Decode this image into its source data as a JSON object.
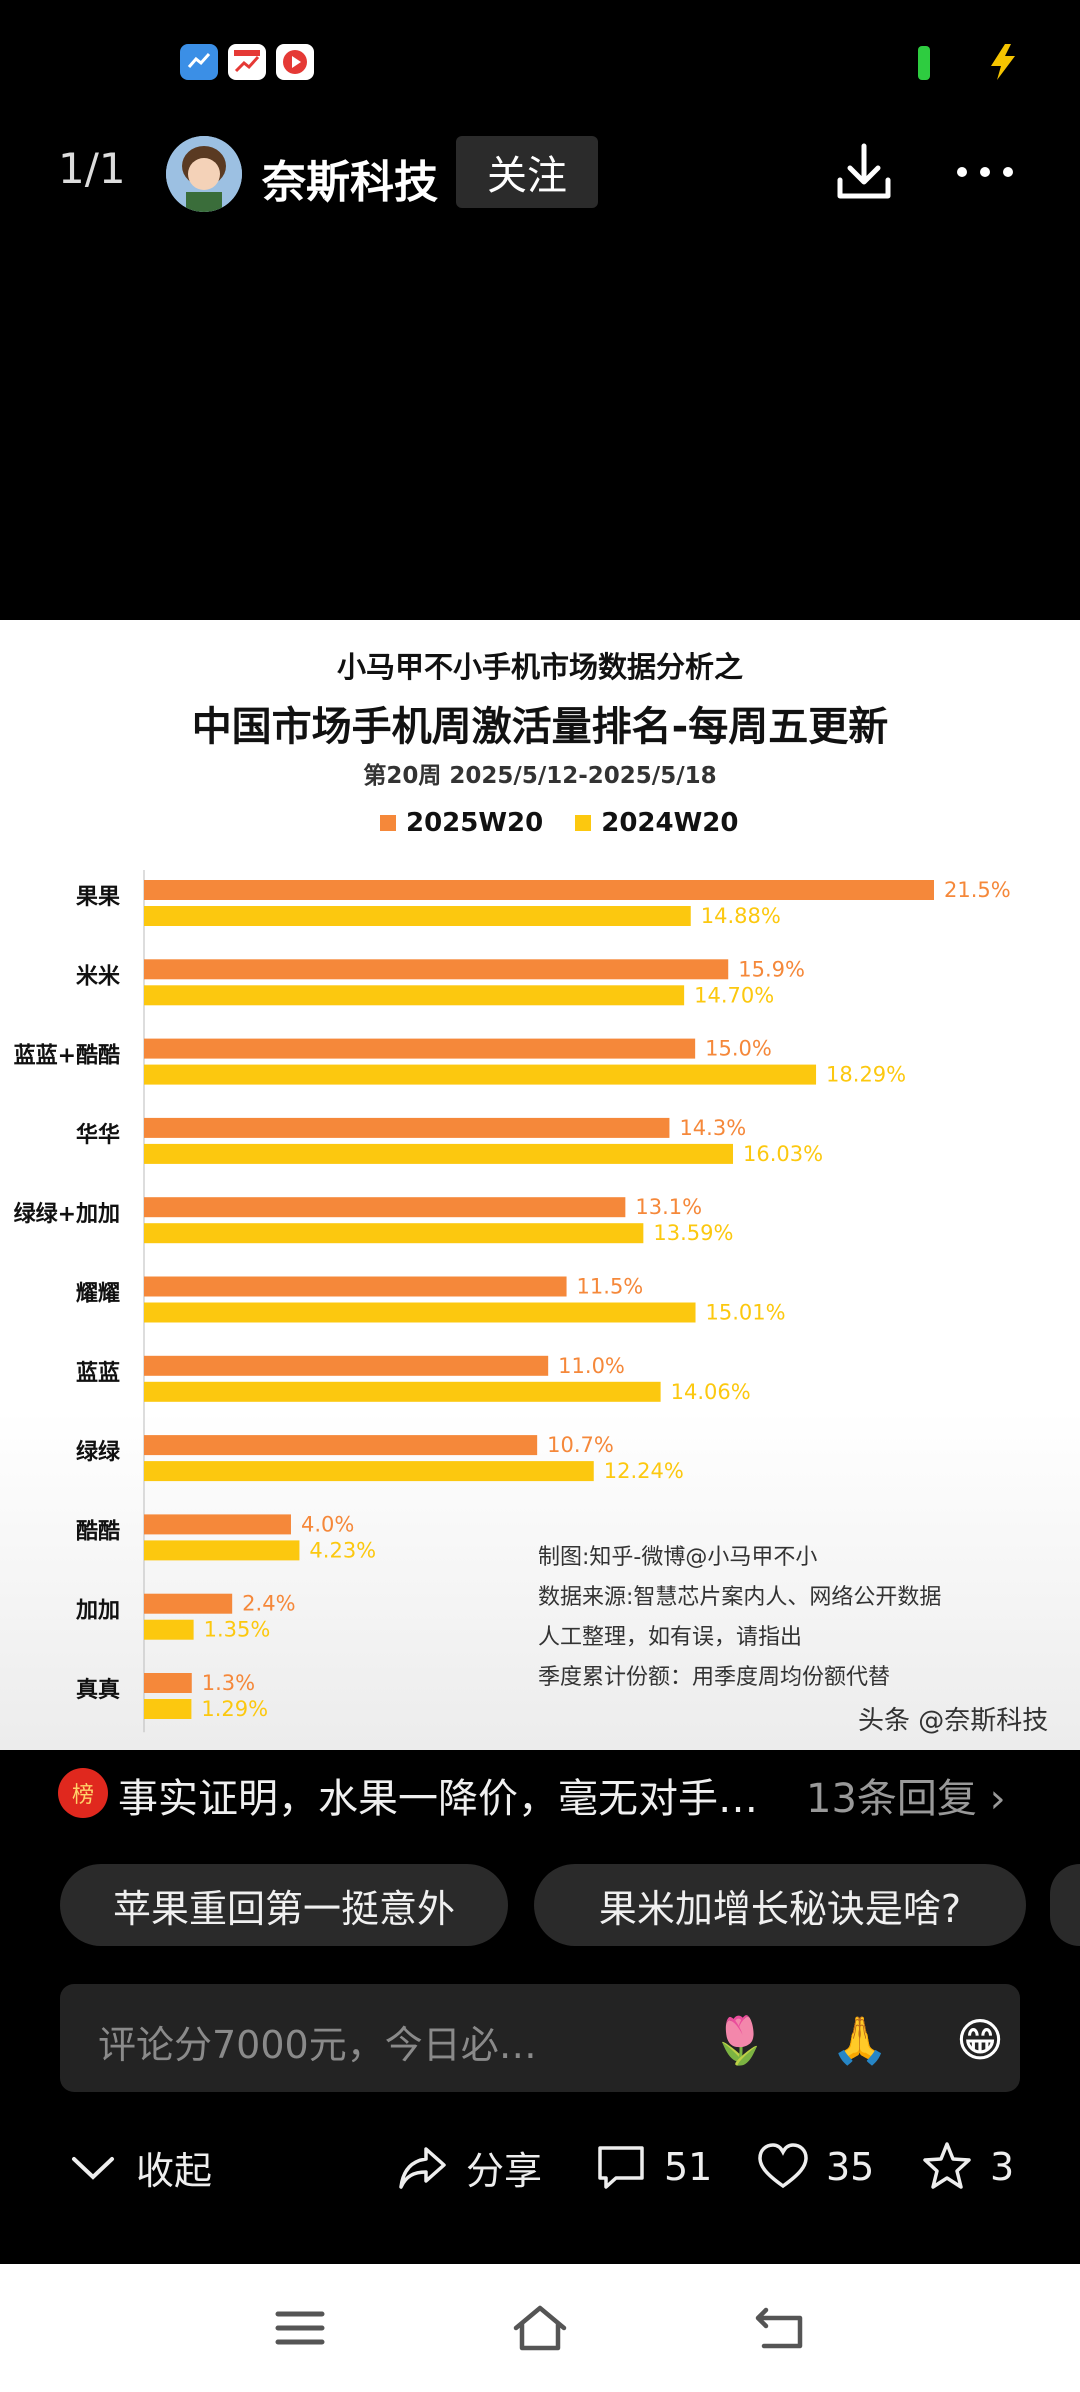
{
  "status_bar": {
    "icons": [
      "weather-app-icon",
      "stock-app-icon",
      "video-app-icon"
    ],
    "battery_color": "#2ecc40",
    "charging_icon": "charging-bolt-icon"
  },
  "header": {
    "page_counter": "1/1",
    "author": "奈斯科技",
    "follow_label": "关注"
  },
  "image": {
    "subtitle": "小马甲不小手机市场数据分析之",
    "title": "中国市场手机周激活量排名-每周五更新",
    "week": "第20周 2025/5/12-2025/5/18",
    "notes": [
      "制图:知乎-微博@小马甲不小",
      "数据来源:智慧芯片案内人、网络公开数据",
      "人工整理，如有误，请指出",
      "季度累计份额：用季度周均份额代替"
    ],
    "watermark": "头条 @奈斯科技"
  },
  "chart_data": {
    "type": "bar",
    "orientation": "horizontal",
    "categories": [
      "果果",
      "米米",
      "蓝蓝+酷酷",
      "华华",
      "绿绿+加加",
      "耀耀",
      "蓝蓝",
      "绿绿",
      "酷酷",
      "加加",
      "真真"
    ],
    "series": [
      {
        "name": "2025W20",
        "color": "#f5883a",
        "values": [
          21.5,
          15.9,
          15.0,
          14.3,
          13.1,
          11.5,
          11.0,
          10.7,
          4.0,
          2.4,
          1.3
        ],
        "labels": [
          "21.5%",
          "15.9%",
          "15.0%",
          "14.3%",
          "13.1%",
          "11.5%",
          "11.0%",
          "10.7%",
          "4.0%",
          "2.4%",
          "1.3%"
        ]
      },
      {
        "name": "2024W20",
        "color": "#fcc80f",
        "values": [
          14.88,
          14.7,
          18.29,
          16.03,
          13.59,
          15.01,
          14.06,
          12.24,
          4.23,
          1.35,
          1.29
        ],
        "labels": [
          "14.88%",
          "14.70%",
          "18.29%",
          "16.03%",
          "13.59%",
          "15.01%",
          "14.06%",
          "12.24%",
          "4.23%",
          "1.35%",
          "1.29%"
        ]
      }
    ],
    "xlim": [
      0,
      21.5
    ],
    "legend": "top-center",
    "grid": false
  },
  "comment_preview": {
    "icon_text": "榜",
    "text": "事实证明，水果一降价，毫无对手…",
    "count": "13条回复 ›"
  },
  "chips": [
    "苹果重回第一挺意外",
    "果米加增长秘诀是啥?"
  ],
  "comment_input": {
    "placeholder": "评论分7000元，今日必…",
    "emojis": [
      "🌷",
      "🙏",
      "😁"
    ]
  },
  "actions": {
    "collapse_label": "收起",
    "share_label": "分享",
    "comments": "51",
    "likes": "35",
    "favorites": "3"
  }
}
